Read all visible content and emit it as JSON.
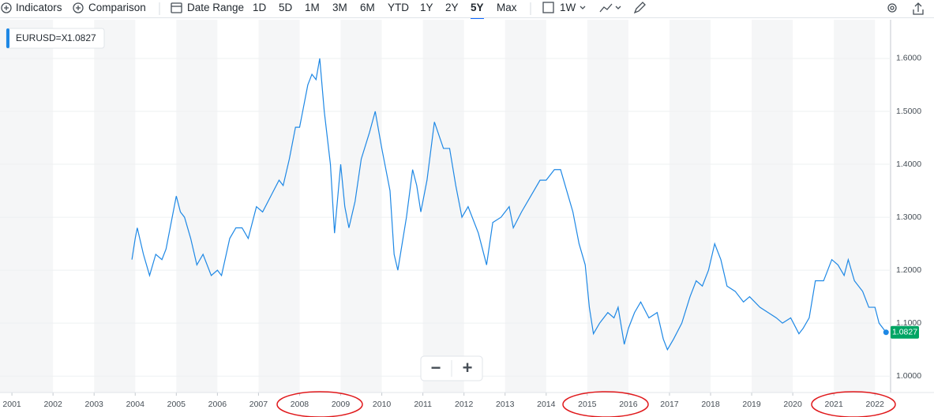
{
  "toolbar": {
    "indicators": "Indicators",
    "comparison": "Comparison",
    "date_range": "Date Range",
    "ranges": [
      "1D",
      "5D",
      "1M",
      "3M",
      "6M",
      "YTD",
      "1Y",
      "2Y",
      "5Y",
      "Max"
    ],
    "interval": "1W"
  },
  "zoom": {
    "out": "−",
    "in": "+"
  },
  "chart_data": {
    "type": "line",
    "x": [
      2003.92,
      2004.0,
      2004.05,
      2004.2,
      2004.35,
      2004.5,
      2004.65,
      2004.75,
      2004.9,
      2005.0,
      2005.1,
      2005.2,
      2005.35,
      2005.5,
      2005.65,
      2005.85,
      2006.0,
      2006.1,
      2006.3,
      2006.45,
      2006.6,
      2006.75,
      2006.95,
      2007.1,
      2007.3,
      2007.5,
      2007.6,
      2007.75,
      2007.9,
      2008.0,
      2008.2,
      2008.3,
      2008.4,
      2008.49,
      2008.6,
      2008.75,
      2008.85,
      2009.0,
      2009.1,
      2009.2,
      2009.35,
      2009.5,
      2009.7,
      2009.84,
      2010.0,
      2010.2,
      2010.3,
      2010.39,
      2010.6,
      2010.75,
      2010.85,
      2010.95,
      2011.1,
      2011.28,
      2011.5,
      2011.65,
      2011.8,
      2011.95,
      2012.1,
      2012.35,
      2012.45,
      2012.55,
      2012.7,
      2012.9,
      2013.1,
      2013.2,
      2013.4,
      2013.55,
      2013.7,
      2013.85,
      2014.0,
      2014.2,
      2014.35,
      2014.5,
      2014.65,
      2014.8,
      2014.95,
      2015.05,
      2015.15,
      2015.3,
      2015.5,
      2015.65,
      2015.75,
      2015.9,
      2016.0,
      2016.15,
      2016.3,
      2016.5,
      2016.7,
      2016.85,
      2016.95,
      2017.1,
      2017.3,
      2017.5,
      2017.65,
      2017.8,
      2017.95,
      2018.1,
      2018.25,
      2018.4,
      2018.6,
      2018.8,
      2018.95,
      2019.2,
      2019.4,
      2019.6,
      2019.75,
      2019.95,
      2020.15,
      2020.25,
      2020.4,
      2020.55,
      2020.75,
      2020.95,
      2021.1,
      2021.25,
      2021.35,
      2021.5,
      2021.7,
      2021.85,
      2022.0,
      2022.1,
      2022.27
    ],
    "series": [
      {
        "name": "EURUSD=X",
        "color": "#1e88e5",
        "values": [
          1.22,
          1.26,
          1.28,
          1.23,
          1.19,
          1.23,
          1.22,
          1.24,
          1.3,
          1.34,
          1.31,
          1.3,
          1.26,
          1.21,
          1.23,
          1.19,
          1.2,
          1.19,
          1.26,
          1.28,
          1.28,
          1.26,
          1.32,
          1.31,
          1.34,
          1.37,
          1.36,
          1.41,
          1.47,
          1.47,
          1.55,
          1.57,
          1.56,
          1.6,
          1.5,
          1.4,
          1.27,
          1.4,
          1.32,
          1.28,
          1.33,
          1.41,
          1.46,
          1.5,
          1.43,
          1.35,
          1.23,
          1.2,
          1.3,
          1.39,
          1.36,
          1.31,
          1.37,
          1.48,
          1.43,
          1.43,
          1.36,
          1.3,
          1.32,
          1.27,
          1.24,
          1.21,
          1.29,
          1.3,
          1.32,
          1.28,
          1.31,
          1.33,
          1.35,
          1.37,
          1.37,
          1.39,
          1.39,
          1.35,
          1.31,
          1.25,
          1.21,
          1.13,
          1.08,
          1.1,
          1.12,
          1.11,
          1.13,
          1.06,
          1.09,
          1.12,
          1.14,
          1.11,
          1.12,
          1.07,
          1.05,
          1.07,
          1.1,
          1.15,
          1.18,
          1.17,
          1.2,
          1.25,
          1.22,
          1.17,
          1.16,
          1.14,
          1.15,
          1.13,
          1.12,
          1.11,
          1.1,
          1.11,
          1.08,
          1.09,
          1.11,
          1.18,
          1.18,
          1.22,
          1.21,
          1.19,
          1.22,
          1.18,
          1.16,
          1.13,
          1.13,
          1.1,
          1.0827
        ]
      }
    ],
    "xlim": [
      2000.71,
      2022.38
    ],
    "xticks": [
      2001,
      2002,
      2003,
      2004,
      2005,
      2006,
      2007,
      2008,
      2009,
      2010,
      2011,
      2012,
      2013,
      2014,
      2015,
      2016,
      2017,
      2018,
      2019,
      2020,
      2021,
      2022
    ],
    "ylim": [
      0.969,
      1.673
    ],
    "yticks": [
      {
        "value": 1.0,
        "label": "1.0000"
      },
      {
        "value": 1.1,
        "label": "1.1000"
      },
      {
        "value": 1.2,
        "label": "1.2000"
      },
      {
        "value": 1.3,
        "label": "1.3000"
      },
      {
        "value": 1.4,
        "label": "1.4000"
      },
      {
        "value": 1.5,
        "label": "1.5000"
      },
      {
        "value": 1.6,
        "label": "1.6000"
      }
    ],
    "grid": true
  }
}
